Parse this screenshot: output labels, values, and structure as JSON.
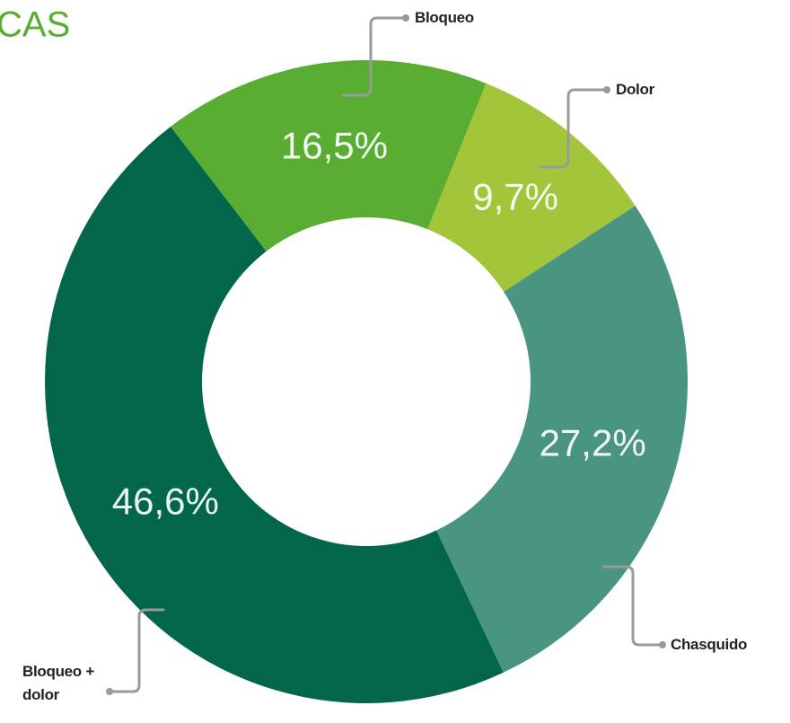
{
  "chart_data": {
    "type": "donut",
    "title": "CAS",
    "categories": [
      "Bloqueo",
      "Dolor",
      "Chasquido",
      "Bloqueo + dolor"
    ],
    "values": [
      16.5,
      9.7,
      27.2,
      46.6
    ],
    "value_labels": [
      "16,5%",
      "9,7%",
      "27,2%",
      "46,6%"
    ],
    "colors": [
      "#5aad33",
      "#a3c53a",
      "#4a9581",
      "#02664b"
    ]
  }
}
